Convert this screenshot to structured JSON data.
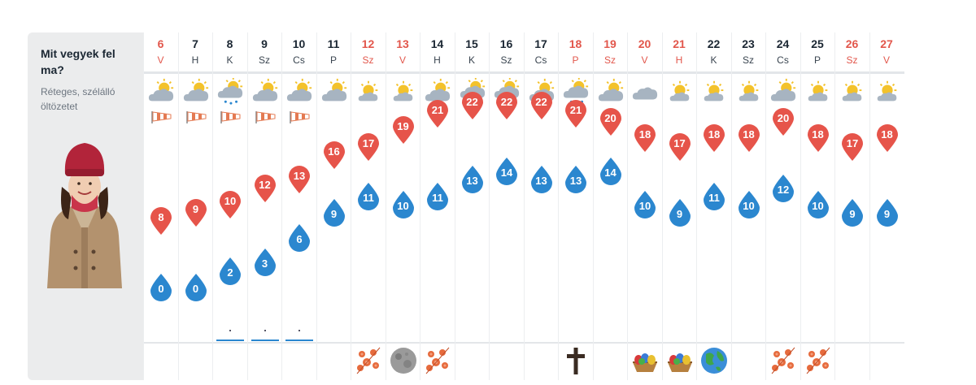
{
  "sidebar": {
    "title": "Mit vegyek fel ma?",
    "subtitle": "Réteges, szélálló öltözetet"
  },
  "days": [
    {
      "num": "6",
      "dow": "V",
      "weekend": true,
      "weather": "partly-sunny-icon",
      "wind": true,
      "high": 8,
      "low": 0,
      "rain": false,
      "event": null
    },
    {
      "num": "7",
      "dow": "H",
      "weekend": false,
      "weather": "partly-sunny-icon",
      "wind": true,
      "high": 9,
      "low": 0,
      "rain": false,
      "event": null
    },
    {
      "num": "8",
      "dow": "K",
      "weekend": false,
      "weather": "sun-rain-icon",
      "wind": true,
      "high": 10,
      "low": 2,
      "rain": true,
      "event": null
    },
    {
      "num": "9",
      "dow": "Sz",
      "weekend": false,
      "weather": "partly-sunny-icon",
      "wind": true,
      "high": 12,
      "low": 3,
      "rain": true,
      "event": null
    },
    {
      "num": "10",
      "dow": "Cs",
      "weekend": false,
      "weather": "partly-sunny-icon",
      "wind": true,
      "high": 13,
      "low": 6,
      "rain": true,
      "event": null
    },
    {
      "num": "11",
      "dow": "P",
      "weekend": false,
      "weather": "partly-sunny-icon",
      "wind": false,
      "high": 16,
      "low": 9,
      "rain": false,
      "event": null
    },
    {
      "num": "12",
      "dow": "Sz",
      "weekend": true,
      "weather": "mostly-sunny-icon",
      "wind": false,
      "high": 17,
      "low": 11,
      "rain": false,
      "event": "flower-icon"
    },
    {
      "num": "13",
      "dow": "V",
      "weekend": true,
      "weather": "mostly-sunny-icon",
      "wind": false,
      "high": 19,
      "low": 10,
      "rain": false,
      "event": "full-moon-icon"
    },
    {
      "num": "14",
      "dow": "H",
      "weekend": false,
      "weather": "partly-sunny-icon",
      "wind": false,
      "high": 21,
      "low": 11,
      "rain": false,
      "event": "flower-icon"
    },
    {
      "num": "15",
      "dow": "K",
      "weekend": false,
      "weather": "sun-rain-icon",
      "wind": false,
      "high": 22,
      "low": 13,
      "rain": false,
      "event": null
    },
    {
      "num": "16",
      "dow": "Sz",
      "weekend": false,
      "weather": "sun-rain-icon",
      "wind": false,
      "high": 22,
      "low": 14,
      "rain": false,
      "event": null
    },
    {
      "num": "17",
      "dow": "Cs",
      "weekend": false,
      "weather": "partly-sunny-icon",
      "wind": false,
      "high": 22,
      "low": 13,
      "rain": false,
      "event": null
    },
    {
      "num": "18",
      "dow": "P",
      "weekend": true,
      "weather": "sun-rain-icon",
      "wind": false,
      "high": 21,
      "low": 13,
      "rain": false,
      "event": "cross-icon"
    },
    {
      "num": "19",
      "dow": "Sz",
      "weekend": true,
      "weather": "partly-sunny-icon",
      "wind": false,
      "high": 20,
      "low": 14,
      "rain": false,
      "event": null
    },
    {
      "num": "20",
      "dow": "V",
      "weekend": true,
      "weather": "cloud-icon",
      "wind": false,
      "high": 18,
      "low": 10,
      "rain": false,
      "event": "easter-basket-icon"
    },
    {
      "num": "21",
      "dow": "H",
      "weekend": true,
      "weather": "mostly-sunny-icon",
      "wind": false,
      "high": 17,
      "low": 9,
      "rain": false,
      "event": "easter-basket-icon"
    },
    {
      "num": "22",
      "dow": "K",
      "weekend": false,
      "weather": "mostly-sunny-icon",
      "wind": false,
      "high": 18,
      "low": 11,
      "rain": false,
      "event": "earth-icon"
    },
    {
      "num": "23",
      "dow": "Sz",
      "weekend": false,
      "weather": "mostly-sunny-icon",
      "wind": false,
      "high": 18,
      "low": 10,
      "rain": false,
      "event": null
    },
    {
      "num": "24",
      "dow": "Cs",
      "weekend": false,
      "weather": "partly-sunny-icon",
      "wind": false,
      "high": 20,
      "low": 12,
      "rain": false,
      "event": "flower-icon"
    },
    {
      "num": "25",
      "dow": "P",
      "weekend": false,
      "weather": "mostly-sunny-icon",
      "wind": false,
      "high": 18,
      "low": 10,
      "rain": false,
      "event": "flower-icon"
    },
    {
      "num": "26",
      "dow": "Sz",
      "weekend": true,
      "weather": "mostly-sunny-icon",
      "wind": false,
      "high": 17,
      "low": 9,
      "rain": false,
      "event": null
    },
    {
      "num": "27",
      "dow": "V",
      "weekend": true,
      "weather": "mostly-sunny-icon",
      "wind": false,
      "high": 18,
      "low": 9,
      "rain": false,
      "event": null
    }
  ],
  "colors": {
    "high": "#e6544a",
    "low": "#2b87cf",
    "weekend": "#e2574c"
  }
}
